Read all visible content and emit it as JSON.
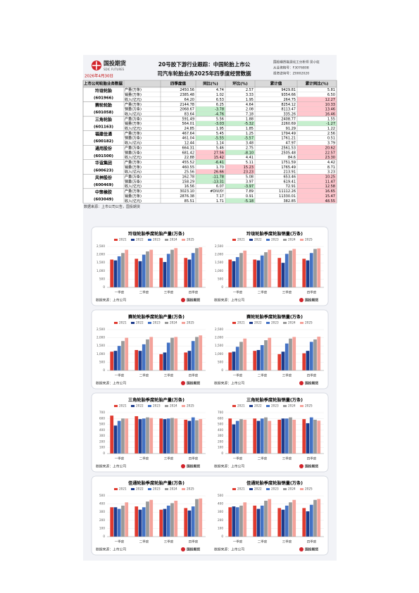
{
  "header": {
    "logo": "国投期货",
    "logo_en": "SDIC FUTURES",
    "date": "2026年4月30日",
    "title_lines": [
      "20号胶下游行业跟踪：中国轮胎上市公",
      "司汽车轮胎业务2025年四季度经营数据"
    ],
    "info": [
      "国投期货能源化工分析师 吴小虹",
      "从业资格号：F3076808",
      "投资咨询号：Z0002020"
    ]
  },
  "table": {
    "header": [
      "上市公司轮胎业务数据",
      "四季度值",
      "同比(%)",
      "环比(%)",
      "累计值",
      "累计同比(%)"
    ],
    "groups": [
      {
        "name": "玲珑轮胎",
        "code": "(601966)",
        "rows": [
          [
            "产量(万条)",
            "2450.56",
            "4.74",
            "2.57",
            "9429.81",
            "5.81"
          ],
          [
            "销量(万条)",
            "2385.48",
            "1.02",
            "3.33",
            "9354.66",
            "6.50"
          ],
          [
            "收入(亿元)",
            "64.20",
            "6.53",
            "1.95",
            "264.75",
            "12.27"
          ]
        ]
      },
      {
        "name": "赛轮轮胎",
        "code": "(601058)",
        "rows": [
          [
            "产量(万条)",
            "2144.78",
            "6.25",
            "4.64",
            "8254.12",
            "10.33"
          ],
          [
            "销量(万条)",
            "2068.67",
            "-3.78",
            "2.08",
            "8113.47",
            "13.46"
          ],
          [
            "收入(亿元)",
            "83.64",
            "-4.76",
            "7.18",
            "335.26",
            "16.46"
          ]
        ]
      },
      {
        "name": "三角轮胎",
        "code": "(601163)",
        "rows": [
          [
            "产量(万条)",
            "591.49",
            "5.56",
            "1.88",
            "2408.77",
            "1.55"
          ],
          [
            "销量(万条)",
            "564.01",
            "-3.03",
            "-5.32",
            "2260.69",
            "-1.27"
          ],
          [
            "收入(亿元)",
            "24.85",
            "1.95",
            "1.85",
            "91.29",
            "1.22"
          ]
        ]
      },
      {
        "name": "福建佳通",
        "code": "(600182)",
        "rows": [
          [
            "产量(万条)",
            "467.64",
            "5.45",
            "1.25",
            "1794.49",
            "2.56"
          ],
          [
            "销量(万条)",
            "461.04",
            "-5.55",
            "-5.57",
            "1761.21",
            "0.51"
          ],
          [
            "收入(亿元)",
            "12.44",
            "1.14",
            "3.48",
            "47.97",
            "3.79"
          ]
        ]
      },
      {
        "name": "通用股份",
        "code": "(601500)",
        "rows": [
          [
            "产量(万条)",
            "664.31",
            "5.46",
            "2.75",
            "2561.53",
            "20.62"
          ],
          [
            "销量(万条)",
            "681.42",
            "27.56",
            "-8.10",
            "2505.48",
            "22.57"
          ],
          [
            "收入(亿元)",
            "22.88",
            "15.42",
            "4.41",
            "84.6",
            "23.30"
          ]
        ]
      },
      {
        "name": "华谊集团",
        "code": "(600623)",
        "rows": [
          [
            "产量(万条)",
            "455.52",
            "-6.41",
            "5.11",
            "1751.59",
            "4.42"
          ],
          [
            "销量(万条)",
            "460.55",
            "1.70",
            "15.23",
            "1765.49",
            "8.71"
          ],
          [
            "收入(亿元)",
            "25.56",
            "26.66",
            "23.23",
            "213.91",
            "3.23"
          ]
        ]
      },
      {
        "name": "风神股份",
        "code": "(600469)",
        "rows": [
          [
            "产量(万条)",
            "162.78",
            "-11.78",
            "5.08",
            "653.46",
            "10.25"
          ],
          [
            "销量(万条)",
            "158.29",
            "-13.31",
            "3.97",
            "619.41",
            "11.47"
          ],
          [
            "收入(亿元)",
            "16.56",
            "6.07",
            "-3.97",
            "72.91",
            "12.58"
          ]
        ]
      },
      {
        "name": "中策橡胶",
        "code": "(603049)",
        "rows": [
          [
            "产量(万条)",
            "3023.10",
            "#DIV/0!",
            "7.89",
            "11112.26",
            "16.65"
          ],
          [
            "销量(万条)",
            "2876.38",
            "7.17",
            "0.91",
            "11330.01",
            "15.47"
          ],
          [
            "收入(亿元)",
            "85.51",
            "1.71",
            "-5.18",
            "382.85",
            "48.55"
          ]
        ]
      }
    ],
    "source": "数据来源：上市公司公告，国投期货"
  },
  "chart_data": [
    {
      "type": "bar",
      "title": "玲珑轮胎季度轮胎产量(万条)",
      "categories": [
        "一季度",
        "二季度",
        "三季度",
        "四季度"
      ],
      "series": [
        {
          "name": "2021",
          "color": "#e03a2f",
          "values": [
            1700,
            1750,
            1800,
            1800
          ]
        },
        {
          "name": "2022",
          "color": "#1e3c8c",
          "values": [
            1650,
            1600,
            1550,
            1700
          ]
        },
        {
          "name": "2023",
          "color": "#4472c4",
          "values": [
            1900,
            2000,
            2050,
            2100
          ]
        },
        {
          "name": "2024",
          "color": "#9a9a9a",
          "values": [
            2100,
            2200,
            2300,
            2400
          ]
        },
        {
          "name": "2025",
          "color": "#f4a29a",
          "values": [
            2300,
            2300,
            2400,
            2450.56
          ]
        }
      ],
      "ylim": [
        0,
        2500
      ],
      "yticks": [
        0,
        500,
        {
          "value": 1000,
          "label": "1,000"
        },
        {
          "value": 1500,
          "label": "1,500"
        },
        {
          "value": 2000,
          "label": "2,000"
        },
        {
          "value": 2500,
          "label": "2,500"
        }
      ],
      "source": "数据来源：上市公司"
    },
    {
      "type": "bar",
      "title": "玲珑轮胎季度轮胎销量(万条)",
      "categories": [
        "一季度",
        "二季度",
        "三季度",
        "四季度"
      ],
      "series": [
        {
          "name": "2021",
          "color": "#e03a2f",
          "values": [
            1700,
            1700,
            1800,
            1750
          ]
        },
        {
          "name": "2022",
          "color": "#1e3c8c",
          "values": [
            1600,
            1650,
            1500,
            1650
          ]
        },
        {
          "name": "2023",
          "color": "#4472c4",
          "values": [
            1850,
            1950,
            2050,
            2100
          ]
        },
        {
          "name": "2024",
          "color": "#9a9a9a",
          "values": [
            2100,
            2150,
            2250,
            2350
          ]
        },
        {
          "name": "2025",
          "color": "#f4a29a",
          "values": [
            2250,
            2300,
            2350,
            2385.48
          ]
        }
      ],
      "ylim": [
        0,
        2500
      ],
      "yticks": [
        0,
        500,
        {
          "value": 1000,
          "label": "1,000"
        },
        {
          "value": 1500,
          "label": "1,500"
        },
        {
          "value": 2000,
          "label": "2,000"
        },
        {
          "value": 2500,
          "label": "2,500"
        }
      ],
      "source": "数据来源：上市公司"
    },
    {
      "type": "bar",
      "title": "赛轮轮胎季度轮胎产量(万条)",
      "categories": [
        "一季度",
        "二季度",
        "三季度",
        "四季度"
      ],
      "series": [
        {
          "name": "2021",
          "color": "#e03a2f",
          "values": [
            1150,
            1250,
            1000,
            1100
          ]
        },
        {
          "name": "2022",
          "color": "#1e3c8c",
          "values": [
            1200,
            1200,
            1100,
            1200
          ]
        },
        {
          "name": "2023",
          "color": "#4472c4",
          "values": [
            1500,
            1600,
            1700,
            1800
          ]
        },
        {
          "name": "2024",
          "color": "#9a9a9a",
          "values": [
            1800,
            1900,
            2000,
            2050
          ]
        },
        {
          "name": "2025",
          "color": "#f4a29a",
          "values": [
            2000,
            2050,
            2050,
            2144.78
          ]
        }
      ],
      "ylim": [
        0,
        2500
      ],
      "yticks": [
        0,
        500,
        {
          "value": 1000,
          "label": "1,000"
        },
        {
          "value": 1500,
          "label": "1,500"
        },
        {
          "value": 2000,
          "label": "2,000"
        },
        {
          "value": 2500,
          "label": "2,500"
        }
      ],
      "source": "数据来源：上市公司"
    },
    {
      "type": "bar",
      "title": "赛轮轮胎季度轮胎销量(万条)",
      "categories": [
        "一季度",
        "二季度",
        "三季度",
        "四季度"
      ],
      "series": [
        {
          "name": "2021",
          "color": "#e03a2f",
          "values": [
            1100,
            1200,
            1000,
            1050
          ]
        },
        {
          "name": "2022",
          "color": "#1e3c8c",
          "values": [
            1150,
            1250,
            1150,
            1200
          ]
        },
        {
          "name": "2023",
          "color": "#4472c4",
          "values": [
            1450,
            1550,
            1650,
            1750
          ]
        },
        {
          "name": "2024",
          "color": "#9a9a9a",
          "values": [
            1750,
            1850,
            1950,
            1900
          ]
        },
        {
          "name": "2025",
          "color": "#f4a29a",
          "values": [
            1950,
            2000,
            2050,
            2068.67
          ]
        }
      ],
      "ylim": [
        0,
        2500
      ],
      "yticks": [
        0,
        500,
        {
          "value": 1000,
          "label": "1,000"
        },
        {
          "value": 1500,
          "label": "1,500"
        },
        {
          "value": 2000,
          "label": "2,000"
        },
        {
          "value": 2500,
          "label": "2,500"
        }
      ],
      "source": "数据来源：上市公司"
    },
    {
      "type": "bar",
      "title": "三角轮胎季度轮胎产量(万条)",
      "categories": [
        "一季度",
        "二季度",
        "三季度",
        "四季度"
      ],
      "series": [
        {
          "name": "2021",
          "color": "#e03a2f",
          "values": [
            650,
            640,
            600,
            580
          ]
        },
        {
          "name": "2022",
          "color": "#1e3c8c",
          "values": [
            480,
            590,
            590,
            560
          ]
        },
        {
          "name": "2023",
          "color": "#4472c4",
          "values": [
            560,
            600,
            600,
            620
          ]
        },
        {
          "name": "2024",
          "color": "#9a9a9a",
          "values": [
            600,
            620,
            610,
            570
          ]
        },
        {
          "name": "2025",
          "color": "#f4a29a",
          "values": [
            600,
            610,
            600,
            591.49
          ]
        }
      ],
      "ylim": [
        0,
        700
      ],
      "yticks": [
        0,
        100,
        200,
        300,
        400,
        500,
        600,
        700
      ],
      "source": "数据来源：上市公司"
    },
    {
      "type": "bar",
      "title": "三角轮胎季度轮胎销量(万条)",
      "categories": [
        "一季度",
        "二季度",
        "三季度",
        "四季度"
      ],
      "series": [
        {
          "name": "2021",
          "color": "#e03a2f",
          "values": [
            600,
            600,
            580,
            590
          ]
        },
        {
          "name": "2022",
          "color": "#1e3c8c",
          "values": [
            500,
            560,
            600,
            520
          ]
        },
        {
          "name": "2023",
          "color": "#4472c4",
          "values": [
            560,
            600,
            600,
            620
          ]
        },
        {
          "name": "2024",
          "color": "#9a9a9a",
          "values": [
            590,
            620,
            620,
            580
          ]
        },
        {
          "name": "2025",
          "color": "#f4a29a",
          "values": [
            580,
            560,
            580,
            564.01
          ]
        }
      ],
      "ylim": [
        0,
        700
      ],
      "yticks": [
        0,
        100,
        200,
        300,
        400,
        500,
        600,
        700
      ],
      "source": "数据来源：上市公司"
    },
    {
      "type": "bar",
      "title": "佳通轮胎季度轮胎产量(万条)",
      "categories": [
        "一季度",
        "二季度",
        "三季度",
        "四季度"
      ],
      "series": [
        {
          "name": "2021",
          "color": "#e03a2f",
          "values": [
            360,
            370,
            330,
            350
          ]
        },
        {
          "name": "2022",
          "color": "#1e3c8c",
          "values": [
            360,
            330,
            340,
            320
          ]
        },
        {
          "name": "2023",
          "color": "#4472c4",
          "values": [
            340,
            360,
            380,
            370
          ]
        },
        {
          "name": "2024",
          "color": "#9a9a9a",
          "values": [
            380,
            430,
            410,
            460
          ]
        },
        {
          "name": "2025",
          "color": "#f4a29a",
          "values": [
            420,
            450,
            440,
            467.64
          ]
        }
      ],
      "ylim": [
        0,
        500
      ],
      "yticks": [
        0,
        100,
        200,
        300,
        400,
        500
      ],
      "source": "数据来源：上市公司"
    },
    {
      "type": "bar",
      "title": "佳通轮胎季度轮胎销量(万条)",
      "categories": [
        "一季度",
        "二季度",
        "三季度",
        "四季度"
      ],
      "series": [
        {
          "name": "2021",
          "color": "#e03a2f",
          "values": [
            360,
            380,
            350,
            350
          ]
        },
        {
          "name": "2022",
          "color": "#1e3c8c",
          "values": [
            370,
            340,
            330,
            310
          ]
        },
        {
          "name": "2023",
          "color": "#4472c4",
          "values": [
            360,
            380,
            380,
            390
          ]
        },
        {
          "name": "2024",
          "color": "#9a9a9a",
          "values": [
            380,
            440,
            420,
            450
          ]
        },
        {
          "name": "2025",
          "color": "#f4a29a",
          "values": [
            420,
            460,
            450,
            461.04
          ]
        }
      ],
      "ylim": [
        0,
        500
      ],
      "yticks": [
        0,
        100,
        200,
        300,
        400,
        500
      ],
      "source": "数据来源：上市公司"
    }
  ]
}
